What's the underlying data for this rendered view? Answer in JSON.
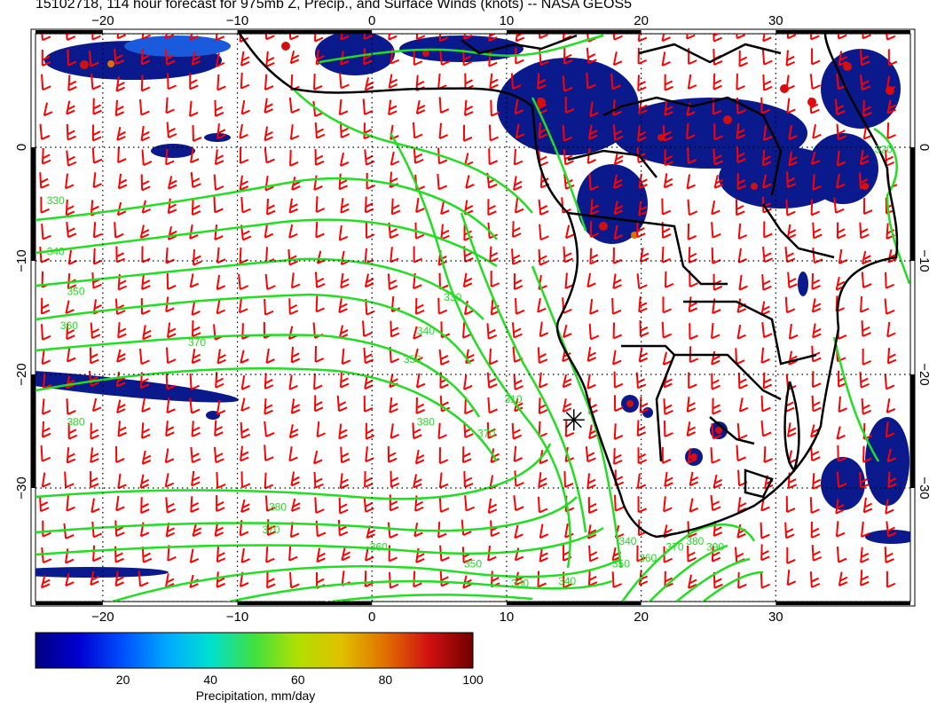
{
  "title": "15102718, 114 hour forecast for 975mb Z, Precip., and Surface Winds (knots) -- NASA GEOS5",
  "map": {
    "lon_range": [
      -25,
      40
    ],
    "lat_range": [
      -40,
      10
    ],
    "lon_ticks": [
      -20,
      -10,
      0,
      10,
      20,
      30
    ],
    "lat_ticks": [
      0,
      -10,
      -20,
      -30
    ],
    "lon_tick_labels": [
      "−20",
      "−10",
      "0",
      "10",
      "20",
      "30"
    ],
    "lat_tick_labels": [
      "0",
      "−10",
      "−20",
      "−30"
    ],
    "grid": true,
    "marker": {
      "lon": 15,
      "lat": -24,
      "symbol": "asterisk"
    },
    "contour_labels": [
      {
        "text": "330",
        "lon": -23.5,
        "lat": -5
      },
      {
        "text": "340",
        "lon": -23.5,
        "lat": -9.5
      },
      {
        "text": "350",
        "lon": -22,
        "lat": -13
      },
      {
        "text": "360",
        "lon": -22.5,
        "lat": -16
      },
      {
        "text": "370",
        "lon": -13,
        "lat": -17.5
      },
      {
        "text": "380",
        "lon": -22,
        "lat": -24.5
      },
      {
        "text": "380",
        "lon": -7,
        "lat": -32
      },
      {
        "text": "370",
        "lon": -7.5,
        "lat": -34
      },
      {
        "text": "360",
        "lon": 0.5,
        "lat": -35.5
      },
      {
        "text": "350",
        "lon": 7.5,
        "lat": -37
      },
      {
        "text": "340",
        "lon": 14.5,
        "lat": -38.5
      },
      {
        "text": "330",
        "lon": 11,
        "lat": -38.7
      },
      {
        "text": "330",
        "lon": 6,
        "lat": -13.5
      },
      {
        "text": "340",
        "lon": 4,
        "lat": -16.5
      },
      {
        "text": "350",
        "lon": 3,
        "lat": -19
      },
      {
        "text": "310",
        "lon": 10.5,
        "lat": -22.5
      },
      {
        "text": "380",
        "lon": 4,
        "lat": -24.5
      },
      {
        "text": "370",
        "lon": 8.5,
        "lat": -25.5
      },
      {
        "text": "340",
        "lon": 19,
        "lat": -35
      },
      {
        "text": "350",
        "lon": 18.5,
        "lat": -37
      },
      {
        "text": "360",
        "lon": 20.5,
        "lat": -36.5
      },
      {
        "text": "370",
        "lon": 22.5,
        "lat": -35.5
      },
      {
        "text": "380",
        "lon": 24,
        "lat": -35
      },
      {
        "text": "390",
        "lon": 25.5,
        "lat": -35.5
      },
      {
        "text": "320",
        "lon": 38,
        "lat": -0.5
      }
    ]
  },
  "colorbar": {
    "label": "Precipitation, mm/day",
    "min": 0,
    "max": 100,
    "ticks": [
      "20",
      "40",
      "60",
      "80",
      "100"
    ],
    "colors": [
      "#000080",
      "#0000d0",
      "#0050ff",
      "#00a8ff",
      "#00e0d0",
      "#40e040",
      "#b0e000",
      "#e0c000",
      "#e07000",
      "#d01010",
      "#700000"
    ]
  },
  "colors": {
    "wind_barbs": "#ff0000",
    "contours": "#22dd22",
    "coastlines": "#000000",
    "precip_low": "#0a1a8c"
  }
}
